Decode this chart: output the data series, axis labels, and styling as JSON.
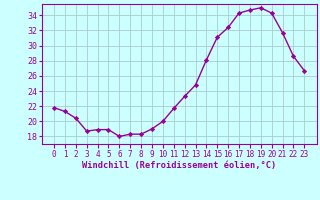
{
  "x": [
    0,
    1,
    2,
    3,
    4,
    5,
    6,
    7,
    8,
    9,
    10,
    11,
    12,
    13,
    14,
    15,
    16,
    17,
    18,
    19,
    20,
    21,
    22,
    23
  ],
  "y": [
    21.8,
    21.3,
    20.4,
    18.7,
    18.9,
    18.9,
    18.0,
    18.3,
    18.3,
    19.0,
    20.0,
    21.7,
    23.3,
    24.8,
    28.1,
    31.1,
    32.4,
    34.3,
    34.7,
    35.0,
    34.3,
    31.7,
    28.6,
    26.7
  ],
  "line_color": "#990099",
  "marker": "D",
  "marker_size": 2.2,
  "bg_color": "#ccffff",
  "grid_color": "#aacccc",
  "xlabel": "Windchill (Refroidissement éolien,°C)",
  "xlabel_color": "#990099",
  "tick_color": "#990099",
  "ylim": [
    17.0,
    35.5
  ],
  "yticks": [
    18,
    20,
    22,
    24,
    26,
    28,
    30,
    32,
    34
  ],
  "xtick_labels": [
    "0",
    "1",
    "2",
    "3",
    "4",
    "5",
    "6",
    "7",
    "8",
    "9",
    "10",
    "11",
    "12",
    "13",
    "14",
    "15",
    "16",
    "17",
    "18",
    "19",
    "20",
    "21",
    "22",
    "23"
  ],
  "line_width": 1.0,
  "font_family": "monospace",
  "tick_fontsize": 5.5,
  "xlabel_fontsize": 6.2,
  "ytick_fontsize": 6.0
}
